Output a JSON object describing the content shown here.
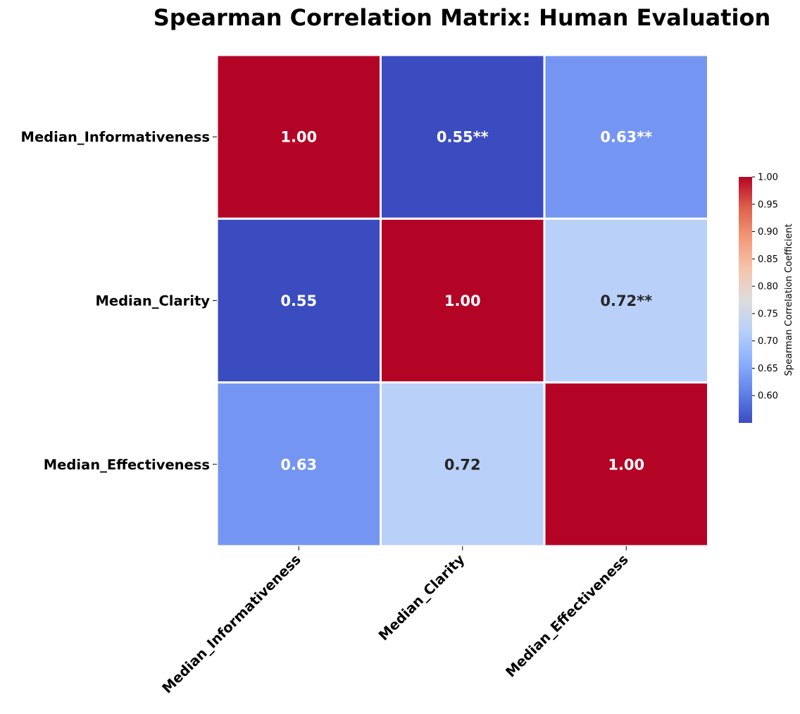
{
  "chart_data": {
    "type": "heatmap",
    "title": "Spearman Correlation Matrix: Human Evaluation",
    "rows": [
      "Median_Informativeness",
      "Median_Clarity",
      "Median_Effectiveness"
    ],
    "columns": [
      "Median_Informativeness",
      "Median_Clarity",
      "Median_Effectiveness"
    ],
    "values": [
      [
        1.0,
        0.55,
        0.63
      ],
      [
        0.55,
        1.0,
        0.72
      ],
      [
        0.63,
        0.72,
        1.0
      ]
    ],
    "annotations": [
      [
        "1.00",
        "0.55**",
        "0.63**"
      ],
      [
        "0.55",
        "1.00",
        "0.72**"
      ],
      [
        "0.63",
        "0.72",
        "1.00"
      ]
    ],
    "colormap": "coolwarm",
    "colorbar": {
      "label": "Spearman Correlation Coefficient",
      "range": [
        0.55,
        1.0
      ],
      "ticks": [
        "0.60",
        "0.65",
        "0.70",
        "0.75",
        "0.80",
        "0.85",
        "0.90",
        "0.95",
        "1.00"
      ]
    },
    "colors": {
      "low": "#3c4ec2",
      "high": "#b40426",
      "dark_text": "#262626",
      "light_text": "#ffffff"
    }
  }
}
